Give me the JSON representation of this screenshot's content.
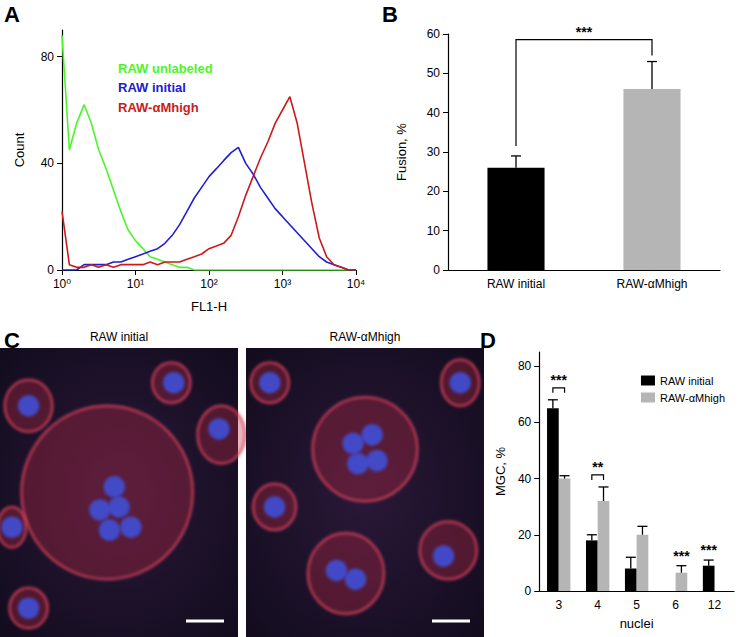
{
  "chart_data": [
    {
      "panel": "A",
      "type": "line",
      "x": [
        1,
        1.26,
        1.58,
        2,
        2.51,
        3.16,
        3.98,
        5.01,
        6.31,
        7.94,
        10,
        12.6,
        15.8,
        20,
        25.1,
        31.6,
        39.8,
        50.1,
        63.1,
        79.4,
        100,
        126,
        158,
        200,
        251,
        316,
        398,
        501,
        631,
        794,
        1000,
        1259,
        1585,
        1995,
        2512,
        3162,
        3981,
        5012,
        6310,
        7943,
        10000
      ],
      "series": [
        {
          "name": "RAW unlabeled",
          "color": "#4cf52a",
          "values": [
            88,
            45,
            55,
            62,
            55,
            45,
            38,
            30,
            22,
            15,
            11,
            8,
            5,
            4,
            3,
            2,
            1,
            1,
            0,
            0,
            0,
            0,
            0,
            0,
            0,
            0,
            0,
            0,
            0,
            0,
            0,
            0,
            0,
            0,
            0,
            0,
            0,
            0,
            0,
            0,
            0
          ]
        },
        {
          "name": "RAW initial",
          "color": "#2020d0",
          "values": [
            0,
            0,
            0,
            2,
            2,
            2,
            2,
            3,
            3,
            4,
            5,
            6,
            7,
            8,
            10,
            13,
            17,
            22,
            27,
            31,
            35,
            38,
            41,
            44,
            46,
            40,
            36,
            31,
            27,
            23,
            20,
            17,
            14,
            11,
            8,
            5,
            3,
            2,
            1,
            0,
            0
          ]
        },
        {
          "name": "RAW-αMhigh",
          "color": "#cc1a1a",
          "values": [
            22,
            2,
            1,
            1,
            2,
            1,
            2,
            1,
            2,
            2,
            2,
            2,
            3,
            2,
            3,
            3,
            3,
            4,
            5,
            6,
            8,
            9,
            10,
            13,
            20,
            28,
            35,
            42,
            48,
            55,
            60,
            65,
            55,
            40,
            25,
            12,
            5,
            2,
            1,
            0,
            0
          ]
        }
      ],
      "xlabel": "FL1-H",
      "ylabel": "Count",
      "log": "x",
      "xlim": [
        1,
        10000
      ],
      "xticks": [
        {
          "value": 1,
          "label": "10⁰"
        },
        {
          "value": 10,
          "label": "10¹"
        },
        {
          "value": 100,
          "label": "10²"
        },
        {
          "value": 1000,
          "label": "10³"
        },
        {
          "value": 10000,
          "label": "10⁴"
        }
      ],
      "ylim": [
        0,
        90
      ],
      "yticks": [
        0,
        40,
        80
      ],
      "legend": "upper left",
      "grid": false
    },
    {
      "panel": "B",
      "type": "bar",
      "categories": [
        "RAW initial",
        "RAW-αMhigh"
      ],
      "values": [
        26,
        46
      ],
      "errors": [
        3,
        7
      ],
      "colors": [
        "#000000",
        "#b5b5b5"
      ],
      "ylabel": "Fusion, %",
      "ylim": [
        0,
        60
      ],
      "yticks": [
        0,
        10,
        20,
        30,
        40,
        50,
        60
      ],
      "annotations": [
        {
          "categories": [
            "RAW initial",
            "RAW-αMhigh"
          ],
          "text": "***"
        }
      ],
      "grid": false
    },
    {
      "panel": "C",
      "type": "image",
      "labels": [
        "RAW initial",
        "RAW-αMhigh"
      ]
    },
    {
      "panel": "D",
      "type": "bar",
      "categories": [
        "3",
        "4",
        "5",
        "6",
        "12"
      ],
      "series": [
        {
          "name": "RAW initial",
          "color": "#000000",
          "values": [
            65,
            18,
            8,
            0,
            9
          ],
          "errors": [
            3,
            2,
            4,
            null,
            2
          ]
        },
        {
          "name": "RAW-αMhigh",
          "color": "#b5b5b5",
          "values": [
            40,
            32,
            20,
            6.5,
            0
          ],
          "errors": [
            1,
            5,
            3,
            2.5,
            null
          ]
        }
      ],
      "xlabel": "nuclei",
      "ylabel": "MGC, %",
      "ylim": [
        0,
        85
      ],
      "yticks": [
        0,
        20,
        40,
        60,
        80
      ],
      "legend": "upper right",
      "annotations": [
        {
          "category": "3",
          "text": "***"
        },
        {
          "category": "4",
          "text": "**"
        },
        {
          "category": "6",
          "text": "***"
        },
        {
          "category": "12",
          "text": "***"
        }
      ],
      "grid": false
    }
  ]
}
